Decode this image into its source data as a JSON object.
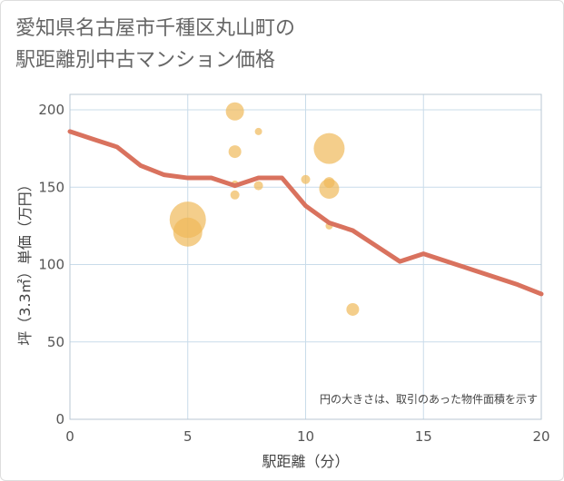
{
  "title": {
    "line1": "愛知県名古屋市千種区丸山町の",
    "line2": "駅距離別中古マンション価格"
  },
  "chart_data": {
    "type": "scatter",
    "xlabel": "駅距離（分）",
    "ylabel": "坪（3.3㎡）単価（万円）",
    "xlim": [
      0,
      20
    ],
    "ylim": [
      0,
      210
    ],
    "xticks": [
      0,
      5,
      10,
      15,
      20
    ],
    "yticks": [
      0,
      50,
      100,
      150,
      200
    ],
    "grid": true,
    "note": "円の大きさは、取引のあった物件面積を示す",
    "colors": {
      "bubble": "#f0b95a",
      "line": "#d9725e",
      "grid": "#c9dcea",
      "plot_border": "#b8c7d3"
    },
    "bubbles": [
      {
        "x": 5,
        "y": 129,
        "size": 20
      },
      {
        "x": 5,
        "y": 121,
        "size": 16
      },
      {
        "x": 7,
        "y": 199,
        "size": 10
      },
      {
        "x": 7,
        "y": 173,
        "size": 7
      },
      {
        "x": 7,
        "y": 152,
        "size": 4
      },
      {
        "x": 7,
        "y": 145,
        "size": 5
      },
      {
        "x": 8,
        "y": 186,
        "size": 4
      },
      {
        "x": 8,
        "y": 151,
        "size": 5
      },
      {
        "x": 10,
        "y": 155,
        "size": 5
      },
      {
        "x": 11,
        "y": 175,
        "size": 17
      },
      {
        "x": 11,
        "y": 153,
        "size": 6
      },
      {
        "x": 11,
        "y": 149,
        "size": 11
      },
      {
        "x": 11,
        "y": 125,
        "size": 4
      },
      {
        "x": 12,
        "y": 71,
        "size": 7
      }
    ],
    "series": [
      {
        "type": "line",
        "x": [
          0,
          1,
          2,
          3,
          4,
          5,
          6,
          7,
          8,
          9,
          10,
          11,
          12,
          13,
          14,
          15,
          16,
          17,
          18,
          19,
          20
        ],
        "y": [
          186,
          181,
          176,
          164,
          158,
          156,
          156,
          151,
          156,
          156,
          138,
          127,
          122,
          112,
          102,
          107,
          102,
          97,
          92,
          87,
          81
        ]
      }
    ]
  }
}
